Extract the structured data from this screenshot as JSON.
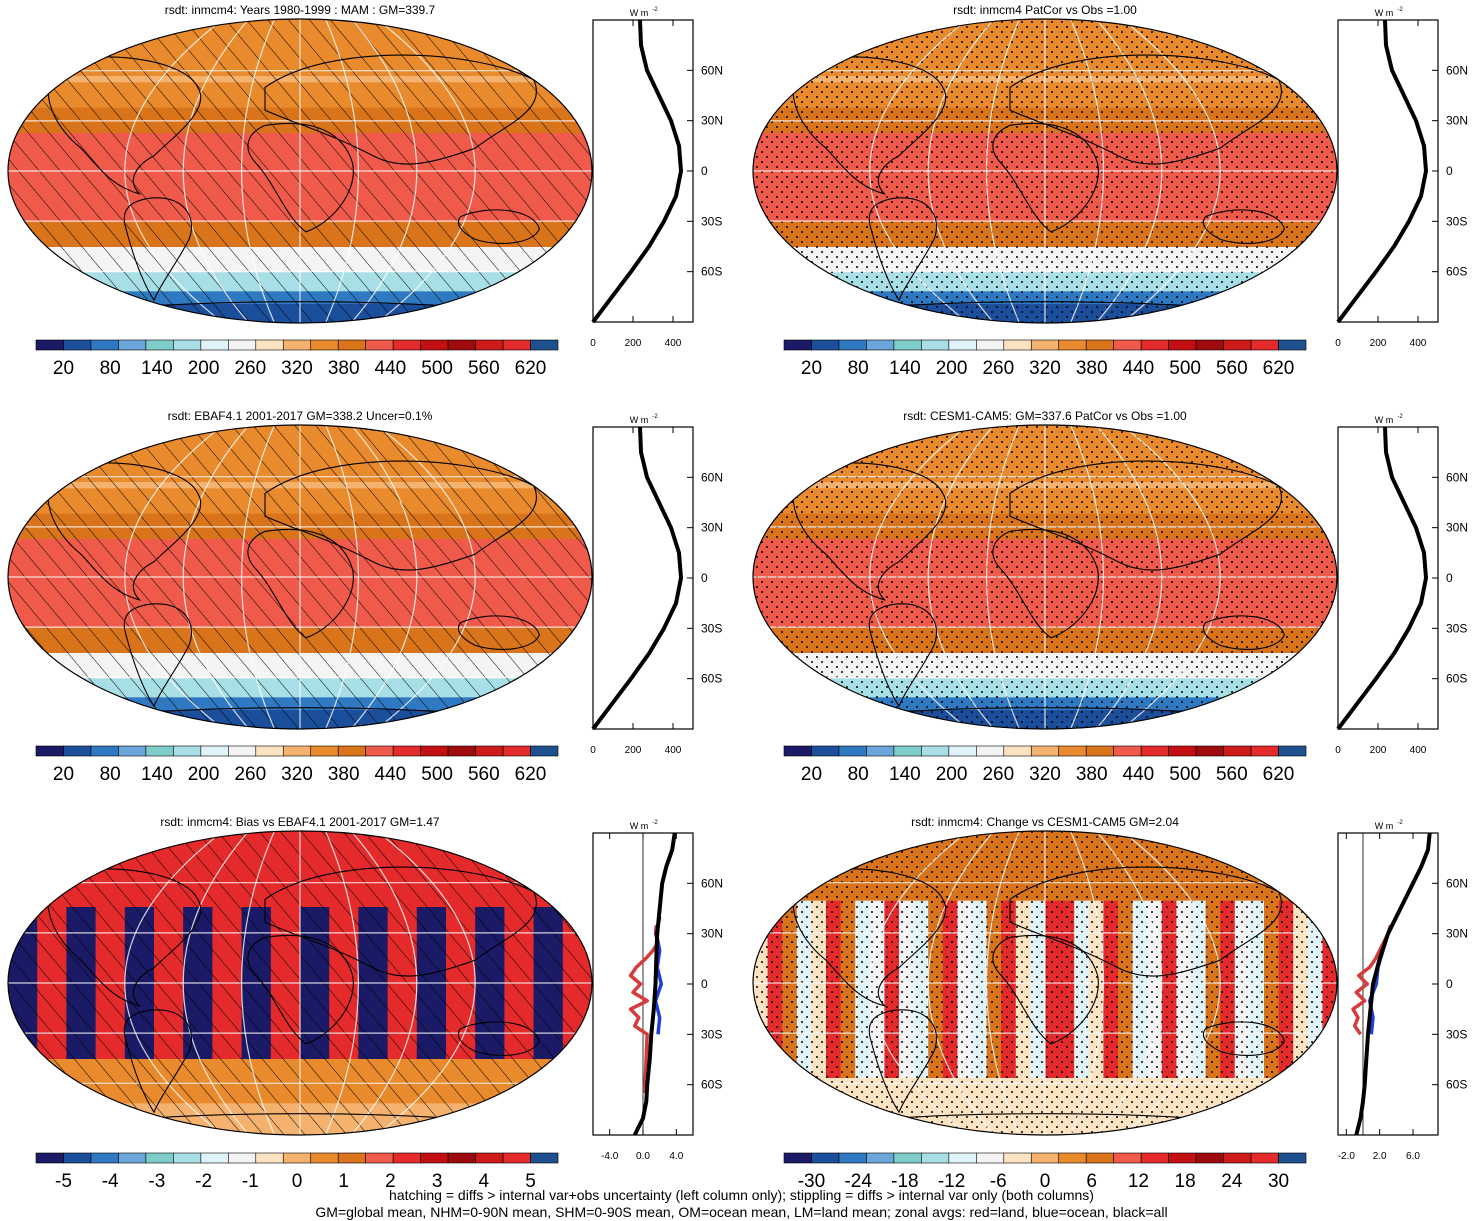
{
  "palette": {
    "fill": [
      "#1a1a66",
      "#1b4f9c",
      "#2f79c2",
      "#6aa6da",
      "#7fcdc9",
      "#a8dfe6",
      "#dff3f8",
      "#f4f4f4",
      "#fde3c2",
      "#f4b26e",
      "#e98a2d",
      "#d9741b",
      "#f05a4a",
      "#e42a2a",
      "#c40f12",
      "#9e0a0e",
      "#cf1a1a",
      "#e42a2a",
      "#1e4f8f"
    ],
    "diff": [
      "#1a1a66",
      "#1b4f9c",
      "#2f79c2",
      "#6aa6da",
      "#7fcdc9",
      "#a8dfe6",
      "#dff3f8",
      "#f7f7f7",
      "#fde3c2",
      "#f4b26e",
      "#e98a2d",
      "#d9741b",
      "#f05a4a",
      "#e42a2a",
      "#c40f12",
      "#9e0a0e",
      "#cf1a1a",
      "#e42a2a",
      "#1e4f8f"
    ],
    "land": "#d63a3a",
    "ocean": "#1f3fd6",
    "all": "#000000"
  },
  "chart_data": [
    {
      "type": "heatmap",
      "panel": "row1-left",
      "title": "rsdt: inmcm4: Years 1980-1999 : MAM : GM=339.7",
      "hatch": "hatching",
      "field": "mean",
      "colorbar_labels": [
        "20",
        "80",
        "140",
        "200",
        "260",
        "320",
        "380",
        "440",
        "500",
        "560",
        "620"
      ],
      "zonal": {
        "unit": "W m",
        "unit_sup": "-2",
        "xticks": [
          "0",
          "200",
          "400"
        ],
        "xlim": [
          0,
          500
        ],
        "yticks": [
          "60N",
          "30N",
          "0",
          "30S",
          "60S"
        ],
        "ylim": [
          -90,
          90
        ],
        "series": [
          {
            "name": "all",
            "lat": [
              -90,
              -75,
              -60,
              -45,
              -30,
              -15,
              0,
              15,
              30,
              45,
              60,
              75,
              90
            ],
            "values": [
              0,
              95,
              190,
              280,
              355,
              415,
              440,
              430,
              390,
              330,
              270,
              240,
              235
            ]
          }
        ]
      }
    },
    {
      "type": "heatmap",
      "panel": "row1-right",
      "title": "rsdt: inmcm4 PatCor vs Obs =1.00",
      "hatch": "stipple",
      "field": "mean",
      "colorbar_labels": [
        "20",
        "80",
        "140",
        "200",
        "260",
        "320",
        "380",
        "440",
        "500",
        "560",
        "620"
      ],
      "zonal": {
        "unit": "W m",
        "unit_sup": "-2",
        "xticks": [
          "0",
          "200",
          "400"
        ],
        "xlim": [
          0,
          500
        ],
        "yticks": [
          "60N",
          "30N",
          "0",
          "30S",
          "60S"
        ],
        "ylim": [
          -90,
          90
        ],
        "series": [
          {
            "name": "all",
            "lat": [
              -90,
              -75,
              -60,
              -45,
              -30,
              -15,
              0,
              15,
              30,
              45,
              60,
              75,
              90
            ],
            "values": [
              0,
              95,
              190,
              280,
              355,
              415,
              440,
              430,
              390,
              330,
              270,
              240,
              235
            ]
          }
        ]
      }
    },
    {
      "type": "heatmap",
      "panel": "row2-left",
      "title": "rsdt: EBAF4.1 2001-2017 GM=338.2 Uncer=0.1%",
      "hatch": "hatching",
      "field": "mean",
      "colorbar_labels": [
        "20",
        "80",
        "140",
        "200",
        "260",
        "320",
        "380",
        "440",
        "500",
        "560",
        "620"
      ],
      "zonal": {
        "unit": "W m",
        "unit_sup": "-2",
        "xticks": [
          "0",
          "200",
          "400"
        ],
        "xlim": [
          0,
          500
        ],
        "yticks": [
          "60N",
          "30N",
          "0",
          "30S",
          "60S"
        ],
        "ylim": [
          -90,
          90
        ],
        "series": [
          {
            "name": "all",
            "lat": [
              -90,
              -75,
              -60,
              -45,
              -30,
              -15,
              0,
              15,
              30,
              45,
              60,
              75,
              90
            ],
            "values": [
              0,
              95,
              190,
              280,
              355,
              415,
              440,
              430,
              390,
              330,
              270,
              240,
              235
            ]
          }
        ]
      }
    },
    {
      "type": "heatmap",
      "panel": "row2-right",
      "title": "rsdt: CESM1-CAM5: GM=337.6 PatCor vs Obs =1.00",
      "hatch": "stipple",
      "field": "mean",
      "colorbar_labels": [
        "20",
        "80",
        "140",
        "200",
        "260",
        "320",
        "380",
        "440",
        "500",
        "560",
        "620"
      ],
      "zonal": {
        "unit": "W m",
        "unit_sup": "-2",
        "xticks": [
          "0",
          "200",
          "400"
        ],
        "xlim": [
          0,
          500
        ],
        "yticks": [
          "60N",
          "30N",
          "0",
          "30S",
          "60S"
        ],
        "ylim": [
          -90,
          90
        ],
        "series": [
          {
            "name": "all",
            "lat": [
              -90,
              -75,
              -60,
              -45,
              -30,
              -15,
              0,
              15,
              30,
              45,
              60,
              75,
              90
            ],
            "values": [
              0,
              95,
              190,
              280,
              355,
              415,
              440,
              430,
              390,
              330,
              270,
              240,
              235
            ]
          }
        ]
      }
    },
    {
      "type": "heatmap",
      "panel": "row3-left",
      "title": "rsdt: inmcm4: Bias vs EBAF4.1 2001-2017 GM=1.47",
      "hatch": "hatching",
      "field": "bias",
      "colorbar_labels": [
        "-5",
        "-4",
        "-3",
        "-2",
        "-1",
        "0",
        "1",
        "2",
        "3",
        "4",
        "5"
      ],
      "zonal": {
        "unit": "W m",
        "unit_sup": "-2",
        "xticks": [
          "-4.0",
          "0.0",
          "4.0"
        ],
        "xlim": [
          -6,
          6
        ],
        "yticks": [
          "60N",
          "30N",
          "0",
          "30S",
          "60S"
        ],
        "ylim": [
          -90,
          90
        ],
        "series": [
          {
            "name": "land",
            "lat": [
              -65,
              -30,
              -25,
              -20,
              -15,
              -10,
              -5,
              0,
              5,
              10,
              15,
              20,
              25,
              30,
              35
            ],
            "values": [
              0.2,
              0.5,
              -1.0,
              -0.5,
              -1.5,
              0.5,
              -1.2,
              -0.3,
              -1.5,
              -0.8,
              0.3,
              1.2,
              1.8,
              1.5,
              1.6
            ]
          },
          {
            "name": "ocean",
            "lat": [
              -30,
              -20,
              -10,
              0,
              10,
              20,
              30,
              40
            ],
            "values": [
              1.8,
              2.0,
              1.5,
              2.2,
              1.7,
              2.0,
              1.6,
              2.0
            ]
          },
          {
            "name": "all",
            "lat": [
              -90,
              -80,
              -70,
              -60,
              -45,
              -30,
              -15,
              0,
              15,
              30,
              45,
              60,
              70,
              80,
              90
            ],
            "values": [
              -1.0,
              0.0,
              0.4,
              0.5,
              0.8,
              1.0,
              1.3,
              1.5,
              1.6,
              1.7,
              2.0,
              2.3,
              2.8,
              3.5,
              3.8
            ]
          }
        ]
      }
    },
    {
      "type": "heatmap",
      "panel": "row3-right",
      "title": "rsdt: inmcm4: Change vs CESM1-CAM5 GM=2.04",
      "hatch": "stipple",
      "field": "change",
      "colorbar_labels": [
        "-30",
        "-24",
        "-18",
        "-12",
        "-6",
        "0",
        "6",
        "12",
        "18",
        "24",
        "30"
      ],
      "zonal": {
        "unit": "W m",
        "unit_sup": "-2",
        "xticks": [
          "-2.0",
          "2.0",
          "6.0"
        ],
        "xlim": [
          -3,
          9
        ],
        "yticks": [
          "60N",
          "30N",
          "0",
          "30S",
          "60S"
        ],
        "ylim": [
          -90,
          90
        ],
        "series": [
          {
            "name": "land",
            "lat": [
              -30,
              -25,
              -20,
              -15,
              -10,
              -5,
              0,
              5,
              10,
              15,
              20,
              25,
              30,
              35
            ],
            "values": [
              -0.3,
              -1.0,
              -0.6,
              -1.2,
              0.2,
              -0.8,
              0.5,
              -0.5,
              0.8,
              1.5,
              2.0,
              2.5,
              3.0,
              3.3
            ]
          },
          {
            "name": "ocean",
            "lat": [
              -30,
              -20,
              -10,
              0,
              10,
              20,
              30
            ],
            "values": [
              1.0,
              1.2,
              0.8,
              1.6,
              1.8,
              2.4,
              3.0
            ]
          },
          {
            "name": "all",
            "lat": [
              -90,
              -80,
              -70,
              -60,
              -45,
              -30,
              -15,
              0,
              15,
              30,
              45,
              60,
              70,
              80,
              90
            ],
            "values": [
              -0.8,
              -0.3,
              0.0,
              0.2,
              0.4,
              0.6,
              0.9,
              1.2,
              2.0,
              3.0,
              4.5,
              6.0,
              7.0,
              7.8,
              8.0
            ]
          }
        ]
      }
    }
  ],
  "captions": {
    "line1": "hatching = diffs > internal var+obs uncertainty (left column only); stippling = diffs > internal var only (both columns)",
    "line2": "GM=global mean, NHM=0-90N mean, SHM=0-90S mean, OM=ocean mean, LM=land mean; zonal avgs: red=land, blue=ocean, black=all"
  }
}
